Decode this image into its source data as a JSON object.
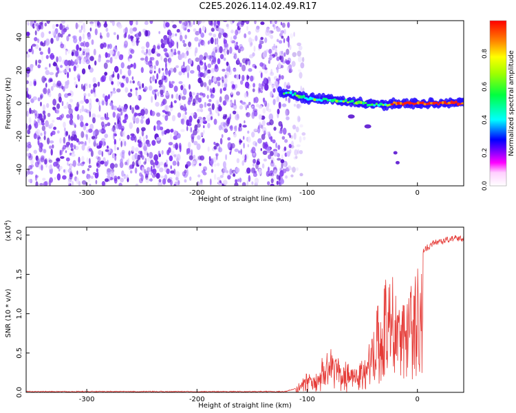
{
  "title": "C2E5.2026.114.02.49.R17",
  "colors": {
    "background": "#ffffff",
    "axis": "#000000",
    "snr_line": "#e53935",
    "noise_purple": "#6a1fe0",
    "colormap": [
      "#ffffff",
      "#ff00ff",
      "#0000ff",
      "#00ffff",
      "#00ff00",
      "#ffff00",
      "#ff8000",
      "#ff0000"
    ]
  },
  "chart_data": [
    {
      "type": "heatmap",
      "name": "spectrogram",
      "xlabel": "Height of straight line (km)",
      "ylabel": "Frequency (Hz)",
      "xlim": [
        -355,
        42
      ],
      "ylim": [
        -50,
        50
      ],
      "xticks": [
        -300,
        -200,
        -100,
        0
      ],
      "yticks": [
        -40,
        -20,
        0,
        20,
        40
      ],
      "grid": false,
      "noise_region_x": [
        -355,
        -115
      ],
      "signal_track": [
        {
          "x": -125,
          "y": 7
        },
        {
          "x": -110,
          "y": 5
        },
        {
          "x": -100,
          "y": 3
        },
        {
          "x": -80,
          "y": 2
        },
        {
          "x": -60,
          "y": 1
        },
        {
          "x": -40,
          "y": -1
        },
        {
          "x": -30,
          "y": -1
        },
        {
          "x": -20,
          "y": 0
        },
        {
          "x": 0,
          "y": 0
        },
        {
          "x": 20,
          "y": 0
        },
        {
          "x": 42,
          "y": 0
        }
      ],
      "branch_track": [
        {
          "x": -60,
          "y": -8
        },
        {
          "x": -45,
          "y": -14
        },
        {
          "x": -20,
          "y": -30
        },
        {
          "x": -18,
          "y": -36
        }
      ],
      "colorbar": {
        "label": "Normalized spectral amplitude",
        "ticks": [
          "0.0",
          "0.2",
          "0.4",
          "0.6",
          "0.8"
        ],
        "range": [
          0,
          1
        ]
      }
    },
    {
      "type": "line",
      "name": "snr",
      "xlabel": "Height of straight line (km)",
      "ylabel": "SNR (10 * v/v)",
      "yscale_label": "(x10",
      "yscale_exp": "4",
      "xlim": [
        -355,
        42
      ],
      "ylim": [
        0,
        2.1
      ],
      "xticks": [
        -300,
        -200,
        -100,
        0
      ],
      "yticks": [
        "0.0",
        "0.5",
        "1.0",
        "1.5",
        "2.0"
      ],
      "grid": false,
      "series": [
        {
          "x": [
            -355,
            -300,
            -200,
            -120,
            -110,
            -105,
            -100,
            -95,
            -90,
            -85,
            -80,
            -75,
            -70,
            -65,
            -60,
            -55,
            -50,
            -45,
            -40,
            -35,
            -30,
            -25,
            -20,
            -15,
            -10,
            -5,
            0,
            5,
            10,
            15,
            20,
            25,
            30,
            35,
            42
          ],
          "y": [
            0.01,
            0.01,
            0.01,
            0.01,
            0.05,
            0.15,
            0.25,
            0.2,
            0.3,
            0.45,
            0.6,
            0.5,
            0.4,
            0.35,
            0.3,
            0.3,
            0.4,
            0.5,
            0.8,
            1.2,
            1.4,
            1.6,
            1.3,
            1.1,
            1.2,
            1.4,
            1.65,
            1.8,
            1.85,
            1.9,
            1.92,
            1.93,
            1.95,
            1.96,
            1.95
          ]
        }
      ]
    }
  ]
}
